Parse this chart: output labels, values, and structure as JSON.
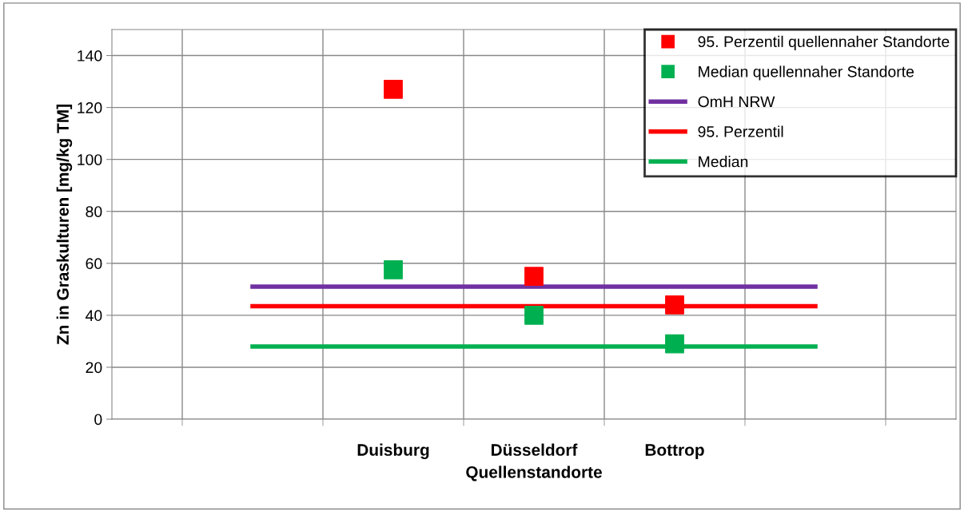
{
  "chart_data": {
    "type": "scatter",
    "xlabel": "Quellenstandorte",
    "ylabel": "Zn in Graskulturen [mg/kg TM]",
    "categories": [
      null,
      "Duisburg",
      "Düsseldorf",
      "Bottrop",
      null
    ],
    "series": [
      {
        "name": "95. Perzentil quellennaher Standorte",
        "marker": "square",
        "color": "#ff0000",
        "values": [
          null,
          127,
          55,
          44,
          null
        ]
      },
      {
        "name": "Median quellennaher Standorte",
        "marker": "square",
        "color": "#00b050",
        "values": [
          null,
          57.5,
          40,
          29,
          null
        ]
      },
      {
        "name": "OmH NRW",
        "type": "line",
        "marker": "none",
        "color": "#7030a0",
        "values": [
          51,
          51,
          51,
          51,
          51
        ]
      },
      {
        "name": "95. Perzentil",
        "type": "line",
        "marker": "none",
        "color": "#ff0000",
        "values": [
          43.5,
          43.5,
          43.5,
          43.5,
          43.5
        ]
      },
      {
        "name": "Median",
        "type": "line",
        "marker": "none",
        "color": "#00b050",
        "values": [
          28,
          28,
          28,
          28,
          28
        ]
      }
    ],
    "ylim": [
      0,
      150
    ],
    "yticks": [
      0,
      20,
      40,
      60,
      80,
      100,
      120,
      140
    ],
    "grid": true,
    "legend": "top right"
  }
}
